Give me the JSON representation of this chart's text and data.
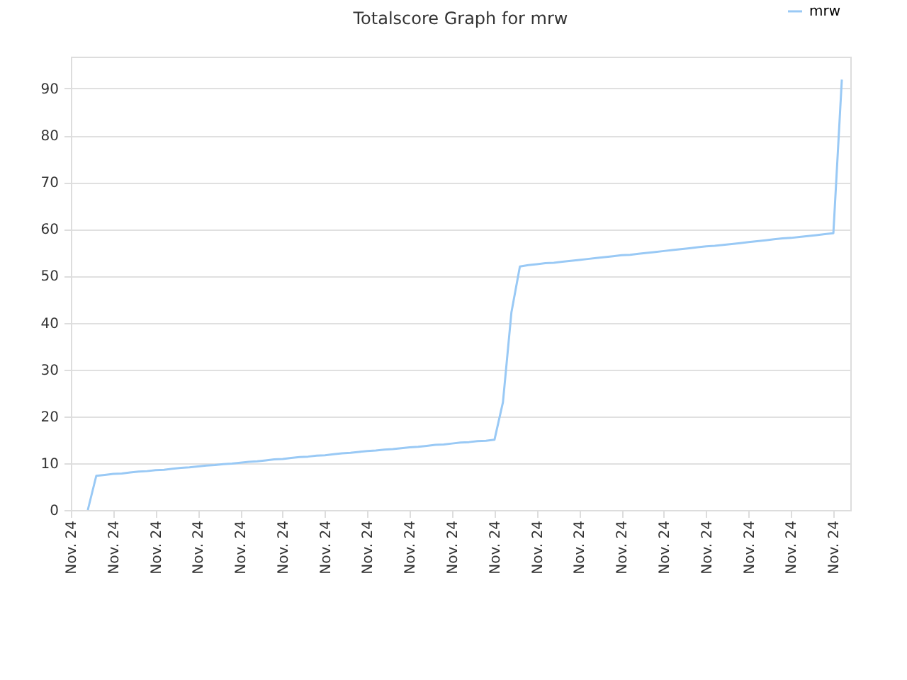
{
  "chart_data": {
    "type": "line",
    "title": "Totalscore Graph for mrw",
    "categories": [
      "Nov. 24",
      null,
      null,
      null,
      null,
      "Nov. 24",
      null,
      null,
      null,
      null,
      "Nov. 24",
      null,
      null,
      null,
      null,
      "Nov. 24",
      null,
      null,
      null,
      null,
      "Nov. 24",
      null,
      null,
      null,
      null,
      "Nov. 24",
      null,
      null,
      null,
      null,
      "Nov. 24",
      null,
      null,
      null,
      null,
      "Nov. 24",
      null,
      null,
      null,
      null,
      "Nov. 24",
      null,
      null,
      null,
      null,
      "Nov. 24",
      null,
      null,
      null,
      null,
      "Nov. 24",
      null,
      null,
      null,
      null,
      "Nov. 24",
      null,
      null,
      null,
      null,
      "Nov. 24",
      null,
      null,
      null,
      null,
      "Nov. 24",
      null,
      null,
      null,
      null,
      "Nov. 24",
      null,
      null,
      null,
      null,
      "Nov. 24",
      null,
      null,
      null,
      null,
      "Nov. 24",
      null,
      null,
      null,
      null,
      "Nov. 24",
      null,
      null,
      null,
      null,
      "Nov. 24",
      null,
      null
    ],
    "series": [
      {
        "name": "mrw",
        "color": "#99c9f5",
        "values": [
          null,
          null,
          0,
          7.3,
          7.5,
          7.7,
          7.8,
          8.0,
          8.2,
          8.3,
          8.5,
          8.6,
          8.8,
          9.0,
          9.1,
          9.3,
          9.5,
          9.6,
          9.8,
          9.9,
          10.1,
          10.3,
          10.4,
          10.6,
          10.8,
          10.9,
          11.1,
          11.3,
          11.4,
          11.6,
          11.7,
          11.9,
          12.1,
          12.2,
          12.4,
          12.6,
          12.7,
          12.9,
          13.0,
          13.2,
          13.4,
          13.5,
          13.7,
          13.9,
          14.0,
          14.2,
          14.4,
          14.5,
          14.7,
          14.8,
          15.0,
          23.0,
          42.2,
          52.0,
          52.3,
          52.5,
          52.7,
          52.8,
          53.0,
          53.2,
          53.4,
          53.6,
          53.8,
          54.0,
          54.2,
          54.4,
          54.5,
          54.7,
          54.9,
          55.1,
          55.3,
          55.5,
          55.7,
          55.9,
          56.1,
          56.3,
          56.4,
          56.6,
          56.8,
          57.0,
          57.2,
          57.4,
          57.6,
          57.8,
          58.0,
          58.1,
          58.3,
          58.5,
          58.7,
          58.9,
          59.1,
          91.9,
          null
        ]
      }
    ],
    "ylim": [
      0,
      96.8
    ],
    "yticks": [
      0,
      10,
      20,
      30,
      40,
      50,
      60,
      70,
      80,
      90
    ],
    "grid": "y",
    "legend": "top right",
    "marker": "none",
    "line_style": "solid"
  }
}
